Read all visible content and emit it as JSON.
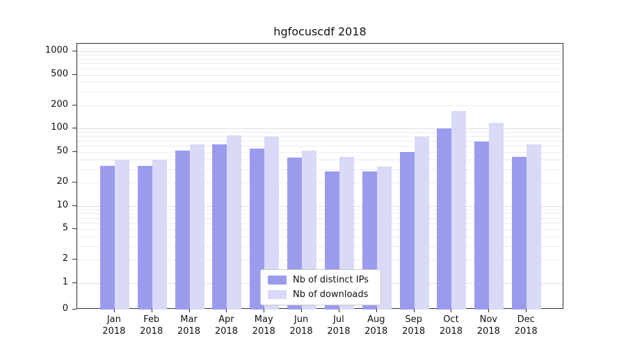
{
  "chart_data": {
    "type": "bar",
    "title": "hgfocuscdf 2018",
    "categories": [
      "Jan",
      "Feb",
      "Mar",
      "Apr",
      "May",
      "Jun",
      "Jul",
      "Aug",
      "Sep",
      "Oct",
      "Nov",
      "Dec"
    ],
    "year_label": "2018",
    "yscale": "symlog",
    "ylim": [
      0,
      1000
    ],
    "yticks": [
      0,
      1,
      2,
      5,
      10,
      20,
      50,
      100,
      200,
      500,
      1000
    ],
    "grid": "horizontal-log-minors-on",
    "legend_position": "lower center",
    "series": [
      {
        "name": "Nb of distinct IPs",
        "color": "#9b9bee",
        "values": [
          33,
          33,
          52,
          62,
          55,
          42,
          28,
          28,
          50,
          100,
          68,
          43
        ]
      },
      {
        "name": "Nb of downloads",
        "color": "#d9d9f8",
        "values": [
          40,
          40,
          62,
          82,
          78,
          52,
          43,
          32,
          78,
          170,
          120,
          62
        ]
      }
    ]
  }
}
